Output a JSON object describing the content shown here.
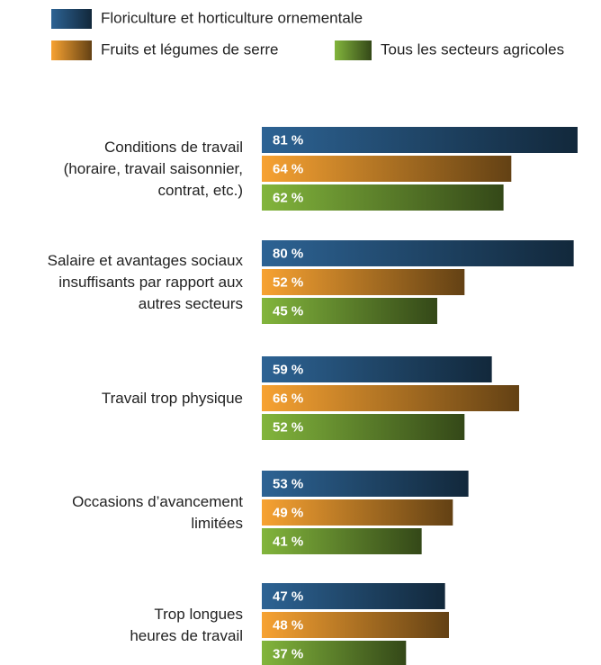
{
  "chart_data": {
    "type": "bar",
    "orientation": "horizontal",
    "categories": [
      "Conditions de travail\n(horaire, travail saisonnier,\ncontrat, etc.)",
      "Salaire et avantages sociaux\ninsuffisants par rapport aux\nautres secteurs",
      "Travail trop physique",
      "Occasions d’avancement\nlimitées",
      "Trop longues\nheures de travail"
    ],
    "series": [
      {
        "name": "Floriculture et horticulture ornementale",
        "color": "#2d6394",
        "values": [
          81,
          80,
          59,
          53,
          47
        ],
        "value_labels": [
          "81 %",
          "80 %",
          "59 %",
          "53 %",
          "47 %"
        ]
      },
      {
        "name": "Fruits et légumes de serre",
        "color": "#f7a232",
        "values": [
          64,
          52,
          66,
          49,
          48
        ],
        "value_labels": [
          "64 %",
          "52 %",
          "66 %",
          "49 %",
          "48 %"
        ]
      },
      {
        "name": "Tous les secteurs agricoles",
        "color": "#82b53c",
        "values": [
          62,
          45,
          52,
          41,
          37
        ],
        "value_labels": [
          "62 %",
          "45 %",
          "52 %",
          "41 %",
          "37 %"
        ]
      }
    ],
    "legend": "top"
  }
}
